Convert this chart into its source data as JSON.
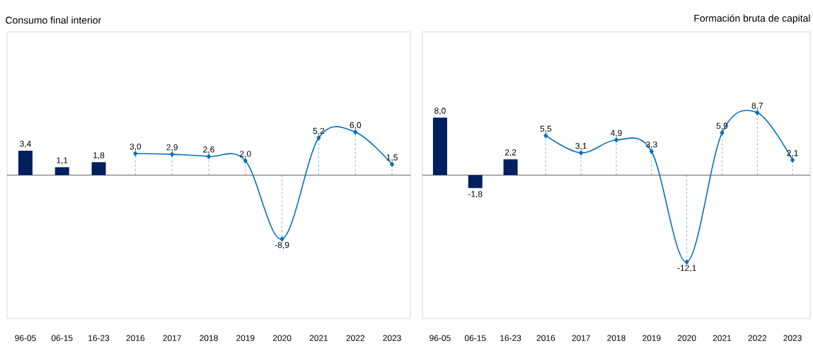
{
  "chart_data": [
    {
      "type": "bar",
      "title": "Consumo final interior",
      "categories": [
        "96-05",
        "06-15",
        "16-23",
        "2016",
        "2017",
        "2018",
        "2019",
        "2020",
        "2021",
        "2022",
        "2023"
      ],
      "series": [
        {
          "color": "#002060",
          "values": [
            3.4,
            1.1,
            1.8,
            null,
            null,
            null,
            null,
            null,
            null,
            null,
            null
          ],
          "value_labels": [
            "3,4",
            "1,1",
            "1,8",
            null,
            null,
            null,
            null,
            null,
            null,
            null,
            null
          ]
        },
        {
          "type": "line",
          "color": "#0070c0",
          "marker": "diamond",
          "values": [
            null,
            null,
            null,
            3.0,
            2.9,
            2.6,
            2.0,
            -8.9,
            5.2,
            6.0,
            1.5
          ],
          "value_labels": [
            null,
            null,
            null,
            "3,0",
            "2,9",
            "2,6",
            "2,0",
            "-8,9",
            "5,2",
            "6,0",
            "1,5"
          ]
        }
      ],
      "tick_labels": "x"
    },
    {
      "type": "bar",
      "title": "Formación bruta de capital",
      "categories": [
        "96-05",
        "06-15",
        "16-23",
        "2016",
        "2017",
        "2018",
        "2019",
        "2020",
        "2021",
        "2022",
        "2023"
      ],
      "series": [
        {
          "color": "#002060",
          "values": [
            8.0,
            -1.8,
            2.2,
            null,
            null,
            null,
            null,
            null,
            null,
            null,
            null
          ],
          "value_labels": [
            "8,0",
            "-1,8",
            "2,2",
            null,
            null,
            null,
            null,
            null,
            null,
            null,
            null
          ]
        },
        {
          "type": "line",
          "color": "#0070c0",
          "marker": "diamond",
          "values": [
            null,
            null,
            null,
            5.5,
            3.1,
            4.9,
            3.3,
            -12.1,
            5.9,
            8.7,
            2.1
          ],
          "value_labels": [
            null,
            null,
            null,
            "5,5",
            "3,1",
            "4,9",
            "3,3",
            "-12,1",
            "5,9",
            "8,7",
            "2,1"
          ]
        }
      ],
      "tick_labels": "x"
    }
  ]
}
